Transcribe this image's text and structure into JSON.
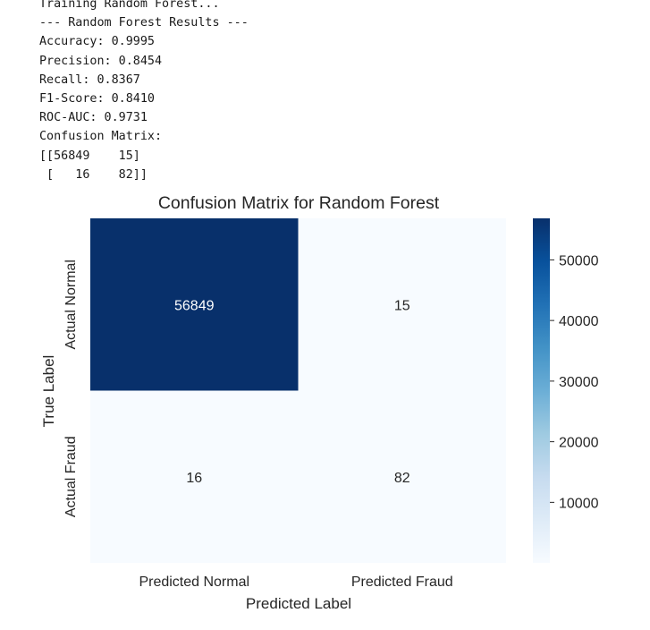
{
  "console": {
    "lines": [
      "Training Random Forest...",
      "--- Random Forest Results ---",
      "Accuracy: 0.9995",
      "Precision: 0.8454",
      "Recall: 0.8367",
      "F1-Score: 0.8410",
      "ROC-AUC: 0.9731",
      "Confusion Matrix:",
      "[[56849    15]",
      " [   16    82]]"
    ]
  },
  "chart_data": {
    "type": "heatmap",
    "title": "Confusion Matrix for Random Forest",
    "xlabel": "Predicted Label",
    "ylabel": "True Label",
    "x_categories": [
      "Predicted Normal",
      "Predicted Fraud"
    ],
    "y_categories": [
      "Actual Normal",
      "Actual Fraud"
    ],
    "values": [
      [
        56849,
        15
      ],
      [
        16,
        82
      ]
    ],
    "colormap": "Blues",
    "color_range": [
      15,
      56849
    ],
    "colorbar_ticks": [
      "50000",
      "40000",
      "30000",
      "20000",
      "10000"
    ],
    "colors": {
      "low": "#f7fbff",
      "high": "#08306b",
      "annotation_on_dark": "#ffffff",
      "annotation_on_light": "#262626"
    },
    "grid": false,
    "legend": "colorbar-right"
  }
}
